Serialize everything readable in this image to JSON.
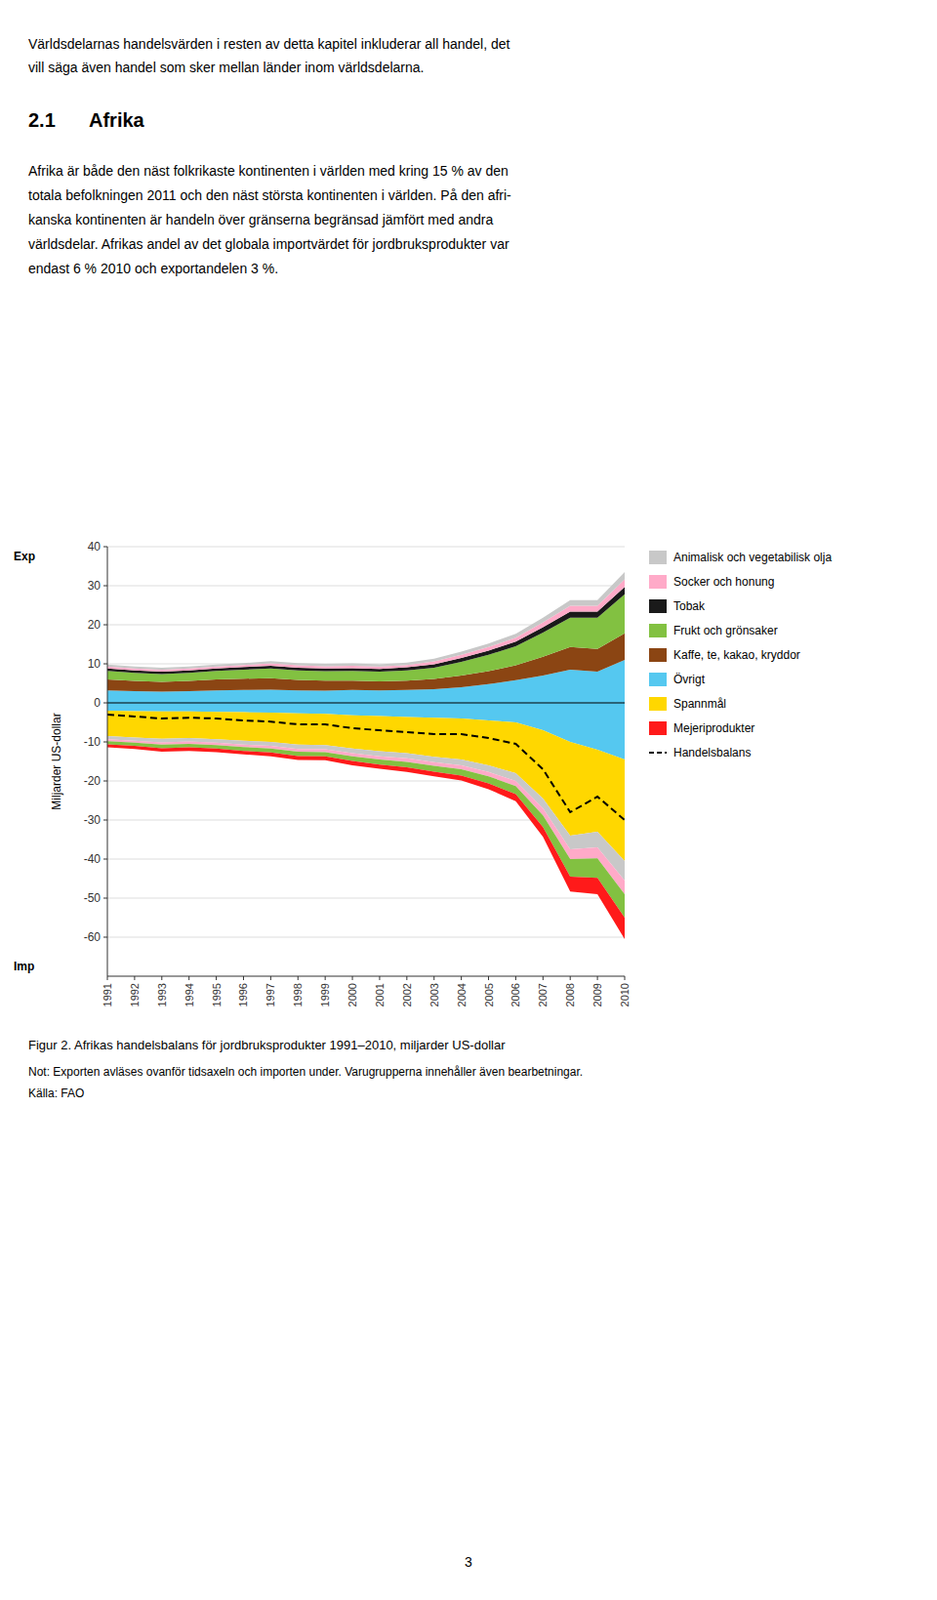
{
  "chart_data": {
    "type": "area",
    "stacked": true,
    "title": "Figur 2. Afrikas handelsbalans för jordbruksprodukter 1991–2010, miljarder US-dollar",
    "ylabel": "Miljarder US-dollar",
    "annotations": [
      "Exp",
      "Imp"
    ],
    "x": [
      1991,
      1992,
      1993,
      1994,
      1995,
      1996,
      1997,
      1998,
      1999,
      2000,
      2001,
      2002,
      2003,
      2004,
      2005,
      2006,
      2007,
      2008,
      2009,
      2010
    ],
    "xlim": [
      1991,
      2010
    ],
    "xticks": [
      1991,
      1992,
      1993,
      1994,
      1995,
      1996,
      1997,
      1998,
      1999,
      2000,
      2001,
      2002,
      2003,
      2004,
      2005,
      2006,
      2007,
      2008,
      2009,
      2010
    ],
    "ylim": [
      -70,
      40
    ],
    "yticks": [
      -60,
      -50,
      -40,
      -30,
      -20,
      -10,
      0,
      10,
      20,
      30,
      40
    ],
    "grid": true,
    "legend": "right",
    "series": [
      {
        "name": "Övrigt",
        "color": "#55c8f0",
        "values": [
          3.2,
          3.0,
          2.9,
          3.0,
          3.2,
          3.3,
          3.4,
          3.2,
          3.1,
          3.3,
          3.2,
          3.3,
          3.5,
          4.0,
          4.8,
          5.8,
          7.0,
          8.5,
          8.0,
          11.0
        ]
      },
      {
        "name": "Kaffe, te, kakao, kryddor",
        "color": "#8b4513",
        "values": [
          2.8,
          2.6,
          2.5,
          2.6,
          2.8,
          2.9,
          2.9,
          2.7,
          2.6,
          2.4,
          2.3,
          2.4,
          2.6,
          3.0,
          3.3,
          3.8,
          4.8,
          5.8,
          5.8,
          6.8
        ]
      },
      {
        "name": "Frukt och grönsaker",
        "color": "#82c141",
        "values": [
          2.2,
          2.1,
          2.0,
          2.1,
          2.2,
          2.3,
          2.5,
          2.4,
          2.4,
          2.5,
          2.5,
          2.6,
          2.9,
          3.5,
          4.2,
          4.9,
          6.2,
          7.5,
          8.0,
          10.0
        ]
      },
      {
        "name": "Tobak",
        "color": "#1a1a1a",
        "values": [
          0.6,
          0.6,
          0.6,
          0.6,
          0.6,
          0.7,
          0.7,
          0.7,
          0.7,
          0.7,
          0.7,
          0.8,
          0.9,
          1.0,
          1.1,
          1.2,
          1.4,
          1.6,
          1.6,
          1.9
        ]
      },
      {
        "name": "Socker och honung",
        "color": "#ffaac8",
        "values": [
          0.5,
          0.5,
          0.5,
          0.5,
          0.5,
          0.5,
          0.6,
          0.6,
          0.6,
          0.6,
          0.6,
          0.6,
          0.7,
          0.8,
          0.9,
          1.0,
          1.2,
          1.5,
          1.5,
          1.9
        ]
      },
      {
        "name": "Animalisk och vegetabilisk olja",
        "color": "#c8c8c8",
        "values": [
          0.5,
          0.5,
          0.5,
          0.5,
          0.5,
          0.5,
          0.6,
          0.6,
          0.6,
          0.6,
          0.6,
          0.6,
          0.7,
          0.8,
          0.9,
          1.0,
          1.2,
          1.4,
          1.4,
          1.9
        ]
      },
      {
        "name": "Övrigt",
        "color": "#55c8f0",
        "values": [
          -2.0,
          -2.1,
          -2.2,
          -2.2,
          -2.3,
          -2.4,
          -2.5,
          -2.7,
          -2.8,
          -3.2,
          -3.4,
          -3.6,
          -3.8,
          -4.0,
          -4.5,
          -5.0,
          -7.0,
          -10.0,
          -12.0,
          -14.5
        ]
      },
      {
        "name": "Spannmål",
        "color": "#ffd700",
        "values": [
          -6.5,
          -6.8,
          -7.0,
          -6.8,
          -7.0,
          -7.3,
          -7.5,
          -8.0,
          -8.0,
          -8.5,
          -9.0,
          -9.3,
          -10.0,
          -10.5,
          -11.5,
          -13.0,
          -17.5,
          -24.0,
          -21.0,
          -26.0
        ]
      },
      {
        "name": "Animalisk och vegetabilisk olja",
        "color": "#c8c8c8",
        "values": [
          -0.8,
          -0.8,
          -0.9,
          -0.9,
          -0.9,
          -1.0,
          -1.0,
          -1.1,
          -1.1,
          -1.2,
          -1.3,
          -1.3,
          -1.4,
          -1.5,
          -1.7,
          -2.0,
          -2.5,
          -3.5,
          -4.0,
          -5.0
        ]
      },
      {
        "name": "Socker och honung",
        "color": "#ffaac8",
        "values": [
          -0.5,
          -0.5,
          -0.6,
          -0.6,
          -0.6,
          -0.6,
          -0.7,
          -0.7,
          -0.7,
          -0.8,
          -0.8,
          -0.9,
          -0.9,
          -1.0,
          -1.1,
          -1.3,
          -1.8,
          -2.5,
          -2.8,
          -3.5
        ]
      },
      {
        "name": "Frukt och grönsaker",
        "color": "#82c141",
        "values": [
          -0.8,
          -0.8,
          -0.9,
          -0.9,
          -0.9,
          -1.0,
          -1.0,
          -1.1,
          -1.1,
          -1.2,
          -1.3,
          -1.4,
          -1.5,
          -1.6,
          -1.8,
          -2.1,
          -3.0,
          -4.5,
          -5.0,
          -6.0
        ]
      },
      {
        "name": "Mejeriprodukter",
        "color": "#ff1a1a",
        "values": [
          -0.8,
          -0.8,
          -0.9,
          -0.9,
          -0.9,
          -0.9,
          -1.0,
          -1.0,
          -1.0,
          -1.1,
          -1.1,
          -1.2,
          -1.2,
          -1.3,
          -1.5,
          -1.8,
          -2.5,
          -3.8,
          -4.2,
          -5.5
        ]
      },
      {
        "name": "Handelsbalans",
        "type": "line",
        "color": "#000000",
        "line_style": "dashed",
        "values": [
          -3.0,
          -3.5,
          -4.0,
          -3.8,
          -4.0,
          -4.5,
          -4.8,
          -5.5,
          -5.5,
          -6.5,
          -7.0,
          -7.5,
          -8.0,
          -8.0,
          -9.0,
          -10.5,
          -17.0,
          -28.0,
          -24.0,
          -30.0
        ]
      }
    ]
  },
  "page": {
    "intro_lines": [
      "Världsdelarnas handelsvärden i resten av detta kapitel inkluderar all handel, det",
      "vill säga även handel som sker mellan länder inom världsdelarna."
    ],
    "section_number": "2.1",
    "section_title": "Afrika",
    "body_lines": [
      "Afrika är både den näst folkrikaste kontinenten i världen med kring 15 % av den",
      "totala befolkningen 2011 och den näst största kontinenten i världen. På den afri-",
      "kanska kontinenten är handeln över gränserna begränsad jämfört med andra",
      "världsdelar. Afrikas andel av det globala importvärdet för jordbruksprodukter var",
      "endast 6 % 2010 och exportandelen 3 %."
    ],
    "notes": [
      "Not: Exporten avläses ovanför tidsaxeln och importen under. Varugrupperna innehåller även bearbetningar.",
      "Källa: FAO"
    ],
    "page_number": "3"
  }
}
